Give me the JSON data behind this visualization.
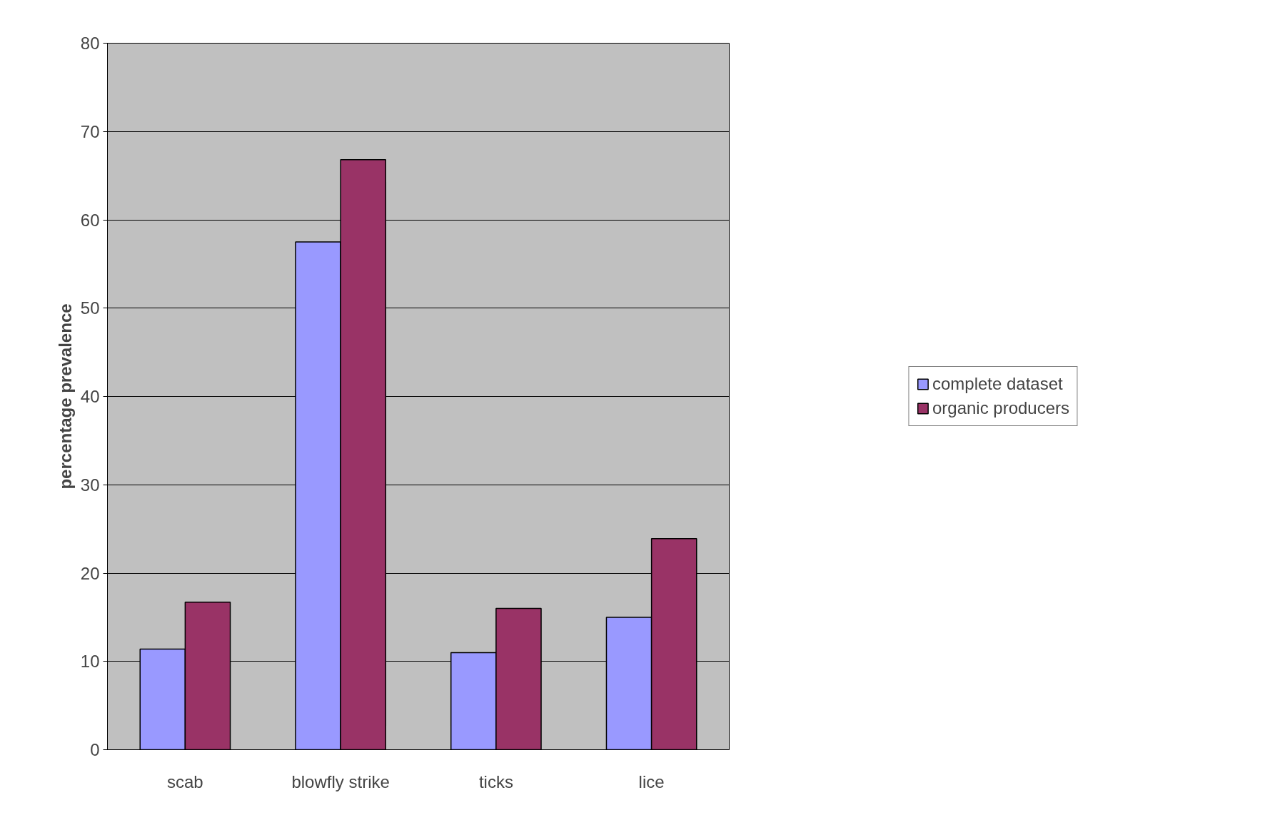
{
  "chart_data": {
    "type": "bar",
    "ylabel": "percentage prevalence",
    "categories": [
      "scab",
      "blowfly strike",
      "ticks",
      "lice"
    ],
    "series": [
      {
        "name": "complete dataset",
        "color": "#9999ff",
        "values": [
          11.4,
          57.5,
          11.0,
          15.0
        ]
      },
      {
        "name": "organic producers",
        "color": "#993366",
        "values": [
          16.7,
          66.8,
          16.0,
          23.9
        ]
      }
    ],
    "ylim": [
      0,
      80
    ],
    "yticks": [
      0,
      10,
      20,
      30,
      40,
      50,
      60,
      70,
      80
    ],
    "grid": "y",
    "legend": "right"
  }
}
